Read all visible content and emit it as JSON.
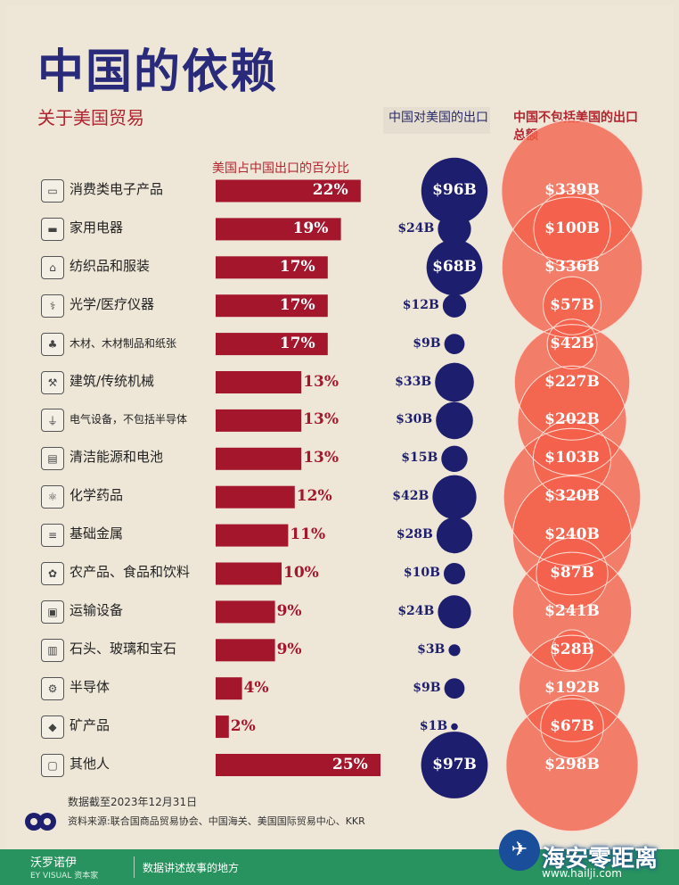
{
  "title": "中国的依赖",
  "subtitle": "关于美国贸易",
  "col_bar": "美国占中国出口的百分比",
  "col_us": "中国对美国的出口",
  "col_nonus": "中国不包括美国的出口总额",
  "chart_data": {
    "type": "bar",
    "categories": [
      "消费类电子产品",
      "家用电器",
      "纺织品和服装",
      "光学/医疗仪器",
      "木材、木材制品和纸张",
      "建筑/传统机械",
      "电气设备，不包括半导体",
      "清洁能源和电池",
      "化学药品",
      "基础金属",
      "农产品、食品和饮料",
      "运输设备",
      "石头、玻璃和宝石",
      "半导体",
      "矿产品",
      "其他人"
    ],
    "pct_labels": [
      "22%",
      "19%",
      "17%",
      "17%",
      "17%",
      "13%",
      "13%",
      "13%",
      "12%",
      "11%",
      "10%",
      "9%",
      "9%",
      "4%",
      "2%",
      "25%"
    ],
    "pct_values": [
      22,
      19,
      17,
      17,
      17,
      13,
      13,
      13,
      12,
      11,
      10,
      9,
      9,
      4,
      2,
      25
    ],
    "series": [
      {
        "name": "中国对美国的出口",
        "values": [
          96,
          24,
          68,
          12,
          9,
          33,
          30,
          15,
          42,
          28,
          10,
          24,
          3,
          9,
          1,
          97
        ],
        "labels": [
          "$96B",
          "$24B",
          "$68B",
          "$12B",
          "$9B",
          "$33B",
          "$30B",
          "$15B",
          "$42B",
          "$28B",
          "$10B",
          "$24B",
          "$3B",
          "$9B",
          "$1B",
          "$97B"
        ]
      },
      {
        "name": "中国不包括美国的出口总额",
        "values": [
          339,
          100,
          336,
          57,
          42,
          227,
          202,
          103,
          320,
          240,
          87,
          241,
          28,
          192,
          67,
          298
        ],
        "labels": [
          "$339B",
          "$100B",
          "$336B",
          "$57B",
          "$42B",
          "$227B",
          "$202B",
          "$103B",
          "$320B",
          "$240B",
          "$87B",
          "$241B",
          "$28B",
          "$192B",
          "$67B",
          "$298B"
        ]
      }
    ]
  },
  "icons": [
    "tv-icon",
    "sofa-icon",
    "shirt-icon",
    "microscope-icon",
    "tree-icon",
    "crane-icon",
    "plug-icon",
    "battery-icon",
    "atom-icon",
    "metal-bars-icon",
    "wheat-icon",
    "car-icon",
    "window-icon",
    "chip-icon",
    "rocks-icon",
    "box-icon"
  ],
  "colors": {
    "bar": "#a3162c",
    "navy": "#1e1e6e",
    "coral": "#f4604a",
    "overlap": "#e8322a"
  },
  "footer": {
    "date": "数据截至2023年12月31日",
    "source": "资料来源:联合国商品贸易协会、中国海关、美国国际贸易中心、KKR"
  },
  "bottom": {
    "brand": "沃罗诺伊",
    "brand_sub": "EY VISUAL 资本家",
    "slogan": "数据讲述故事的地方",
    "watermark": "海安零距离",
    "watermark_sub": "www.hailji.com"
  }
}
